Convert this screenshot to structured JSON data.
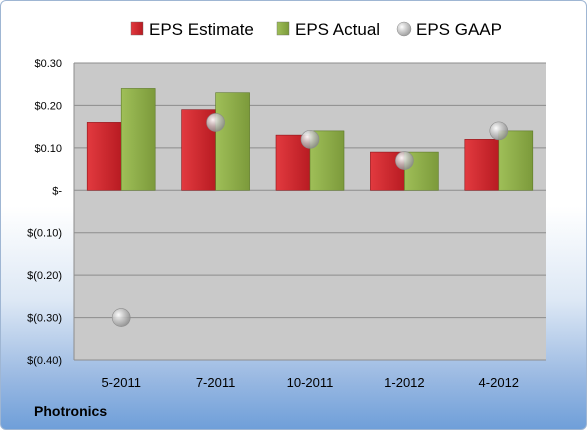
{
  "company": "Photronics",
  "colors": {
    "estimate": "#c8232a",
    "actual": "#8fae4a",
    "gaap": "#b8b8b8",
    "plot_bg": "#c9c9c9"
  },
  "chart_data": {
    "type": "bar",
    "categories": [
      "5-2011",
      "7-2011",
      "10-2011",
      "1-2012",
      "4-2012"
    ],
    "series": [
      {
        "name": "EPS Estimate",
        "kind": "bar",
        "values": [
          0.16,
          0.19,
          0.13,
          0.09,
          0.12
        ]
      },
      {
        "name": "EPS Actual",
        "kind": "bar",
        "values": [
          0.24,
          0.23,
          0.14,
          0.09,
          0.14
        ]
      },
      {
        "name": "EPS GAAP",
        "kind": "scatter",
        "values": [
          -0.3,
          0.16,
          0.12,
          0.07,
          0.14
        ]
      }
    ],
    "yticks": [
      0.3,
      0.2,
      0.1,
      0,
      -0.1,
      -0.2,
      -0.3,
      -0.4
    ],
    "ytick_labels": [
      "$0.30",
      "$0.20",
      "$0.10",
      "$-",
      "$(0.10)",
      "$(0.20)",
      "$(0.30)",
      "$(0.40)"
    ],
    "ylim": [
      -0.4,
      0.3
    ],
    "legend_position": "top",
    "grid": true
  }
}
